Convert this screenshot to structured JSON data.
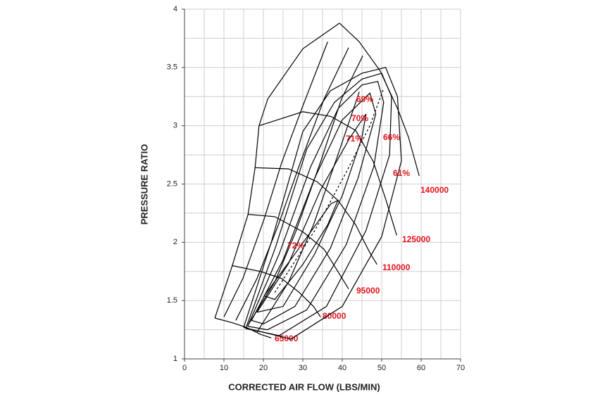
{
  "chart_data": {
    "type": "line",
    "xlabel": "CORRECTED AIR FLOW (LBS/MIN)",
    "ylabel": "PRESSURE RATIO",
    "xlim": [
      0,
      70
    ],
    "ylim": [
      1,
      4
    ],
    "xticks": [
      0,
      10,
      20,
      30,
      40,
      50,
      60,
      70
    ],
    "yticks": [
      1,
      1.5,
      2,
      2.5,
      3,
      3.5,
      4
    ],
    "xgrid": [
      0,
      5,
      10,
      15,
      20,
      25,
      30,
      35,
      40,
      45,
      50,
      55,
      60,
      65,
      70
    ],
    "ygrid": [
      1,
      1.25,
      1.5,
      1.75,
      2,
      2.25,
      2.5,
      2.75,
      3,
      3.25,
      3.5,
      3.75,
      4
    ],
    "line_color": "#000000",
    "label_color": "#e3121b",
    "series": [
      {
        "x": [
          7.7,
          12.1,
          16.1,
          17.9,
          18.9,
          21.1,
          30.0,
          39.3
        ],
        "y": [
          1.35,
          1.8,
          2.24,
          2.64,
          3.0,
          3.23,
          3.66,
          3.88
        ]
      },
      {
        "name": "140000",
        "x": [
          39.3,
          44.3,
          49.6,
          54.1,
          56.8,
          59.5
        ],
        "y": [
          3.88,
          3.72,
          3.47,
          3.14,
          2.9,
          2.57
        ]
      },
      {
        "name": "125000",
        "x": [
          18.9,
          30.0,
          37.1,
          43.4,
          47.9,
          51.1,
          53.8
        ],
        "y": [
          3.0,
          3.12,
          3.08,
          2.96,
          2.69,
          2.36,
          2.06
        ]
      },
      {
        "name": "110000",
        "x": [
          17.9,
          26.4,
          33.6,
          38.9,
          43.4,
          47.0,
          48.8
        ],
        "y": [
          2.64,
          2.63,
          2.52,
          2.36,
          2.15,
          1.91,
          1.81
        ]
      },
      {
        "name": "95000",
        "x": [
          16.1,
          22.9,
          30.0,
          35.4,
          38.9,
          41.6
        ],
        "y": [
          2.24,
          2.22,
          2.09,
          1.94,
          1.75,
          1.6
        ]
      },
      {
        "name": "80000",
        "x": [
          12.1,
          19.3,
          24.6,
          29.1,
          32.7,
          34.5
        ],
        "y": [
          1.8,
          1.75,
          1.69,
          1.57,
          1.45,
          1.36
        ]
      },
      {
        "name": "65000",
        "x": [
          7.7,
          12.1,
          15.7,
          19.3,
          22.0
        ],
        "y": [
          1.35,
          1.31,
          1.27,
          1.21,
          1.18
        ]
      },
      {
        "x": [
          10.0,
          14.8,
          20.2,
          24.6,
          30.0,
          36.3
        ],
        "y": [
          1.36,
          1.69,
          2.2,
          2.68,
          3.17,
          3.72
        ]
      },
      {
        "x": [
          13.0,
          18.4,
          23.8,
          29.1,
          35.4,
          41.6
        ],
        "y": [
          1.33,
          1.69,
          2.15,
          2.66,
          3.23,
          3.67
        ]
      },
      {
        "x": [
          16.1,
          22.9,
          28.2,
          34.5,
          39.8,
          45.2
        ],
        "y": [
          1.29,
          1.66,
          2.09,
          2.69,
          3.23,
          3.6
        ]
      },
      {
        "x": [
          18.4,
          26.4,
          32.7,
          38.9,
          44.3
        ],
        "y": [
          1.23,
          1.66,
          2.15,
          2.75,
          3.29
        ]
      },
      {
        "name": "72%",
        "x": [
          20.2,
          28.2,
          37.1,
          38.9,
          36.3,
          30.0,
          22.9,
          20.2
        ],
        "y": [
          1.54,
          1.91,
          2.33,
          2.36,
          2.15,
          1.81,
          1.51,
          1.54
        ]
      },
      {
        "name": "71%",
        "x": [
          18.4,
          26.4,
          34.5,
          42.0,
          46.0,
          45.0,
          40.0,
          33.0,
          25.0,
          18.4
        ],
        "y": [
          1.4,
          1.82,
          2.45,
          2.9,
          3.1,
          2.9,
          2.4,
          1.9,
          1.45,
          1.4
        ]
      },
      {
        "name": "70%",
        "x": [
          17.0,
          25.0,
          33.0,
          40.0,
          47.0,
          48.5,
          44.0,
          37.0,
          28.0,
          20.0,
          17.0
        ],
        "y": [
          1.33,
          1.85,
          2.55,
          3.05,
          3.28,
          3.1,
          2.55,
          1.95,
          1.45,
          1.3,
          1.33
        ]
      },
      {
        "name": "69%",
        "x": [
          16.0,
          24.0,
          32.0,
          39.0,
          45.0,
          49.0,
          50.5,
          48.0,
          41.0,
          31.0,
          21.0,
          16.0
        ],
        "y": [
          1.28,
          1.9,
          2.65,
          3.15,
          3.35,
          3.38,
          3.2,
          2.65,
          1.98,
          1.42,
          1.25,
          1.28
        ]
      },
      {
        "name": "66%",
        "x": [
          15.5,
          23.0,
          31.0,
          38.0,
          45.0,
          50.0,
          52.5,
          52.0,
          46.0,
          36.0,
          24.0,
          15.5
        ],
        "y": [
          1.26,
          1.95,
          2.8,
          3.2,
          3.4,
          3.45,
          3.25,
          2.75,
          2.1,
          1.45,
          1.2,
          1.26
        ]
      },
      {
        "name": "61%",
        "x": [
          15.0,
          22.0,
          30.0,
          37.0,
          45.0,
          51.0,
          54.0,
          55.0,
          50.0,
          40.0,
          27.0,
          15.0
        ],
        "y": [
          1.27,
          2.0,
          2.95,
          3.3,
          3.45,
          3.5,
          3.25,
          2.7,
          2.05,
          1.45,
          1.17,
          1.27
        ]
      },
      {
        "x": [
          22.9,
          33.0,
          41.0,
          47.0,
          50.5
        ],
        "y": [
          1.57,
          2.1,
          2.6,
          3.0,
          3.32
        ],
        "dashed": true
      }
    ]
  }
}
